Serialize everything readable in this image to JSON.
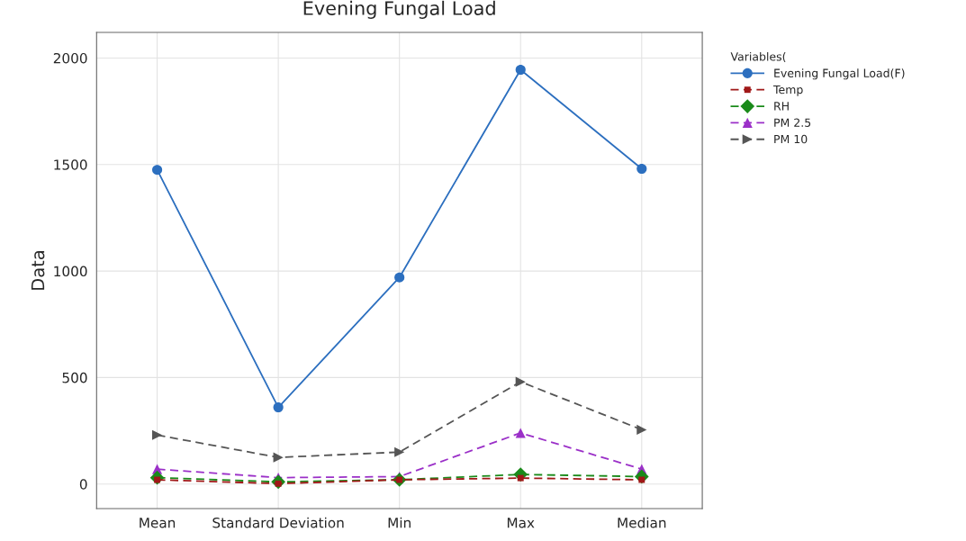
{
  "chart_data": {
    "type": "line",
    "title": "Evening Fungal Load",
    "ylabel": "Data",
    "legend_title": "Variables(",
    "categories": [
      "Mean",
      "Standard Deviation",
      "Min",
      "Max",
      "Median"
    ],
    "series": [
      {
        "name": "Evening Fungal Load(F)",
        "color": "#2c6fbf",
        "marker": "circle",
        "line_style": "solid",
        "values": [
          1475,
          360,
          970,
          1945,
          1480
        ]
      },
      {
        "name": "Temp",
        "color": "#a01818",
        "marker": "square",
        "line_style": "dashed",
        "values": [
          20,
          2,
          20,
          28,
          20
        ]
      },
      {
        "name": "RH",
        "color": "#1a8a1a",
        "marker": "diamond",
        "line_style": "dashed",
        "values": [
          30,
          10,
          20,
          45,
          35
        ]
      },
      {
        "name": "PM 2.5",
        "color": "#9b30c8",
        "marker": "triangle",
        "line_style": "dashed",
        "values": [
          70,
          30,
          35,
          240,
          70
        ]
      },
      {
        "name": "PM 10",
        "color": "#555555",
        "marker": "triangle-right",
        "line_style": "dashed",
        "values": [
          230,
          125,
          150,
          480,
          255
        ]
      }
    ],
    "ylim": [
      -115,
      2120
    ],
    "yticks": [
      0,
      500,
      1000,
      1500,
      2000
    ],
    "grid": true,
    "legend": "top right"
  }
}
